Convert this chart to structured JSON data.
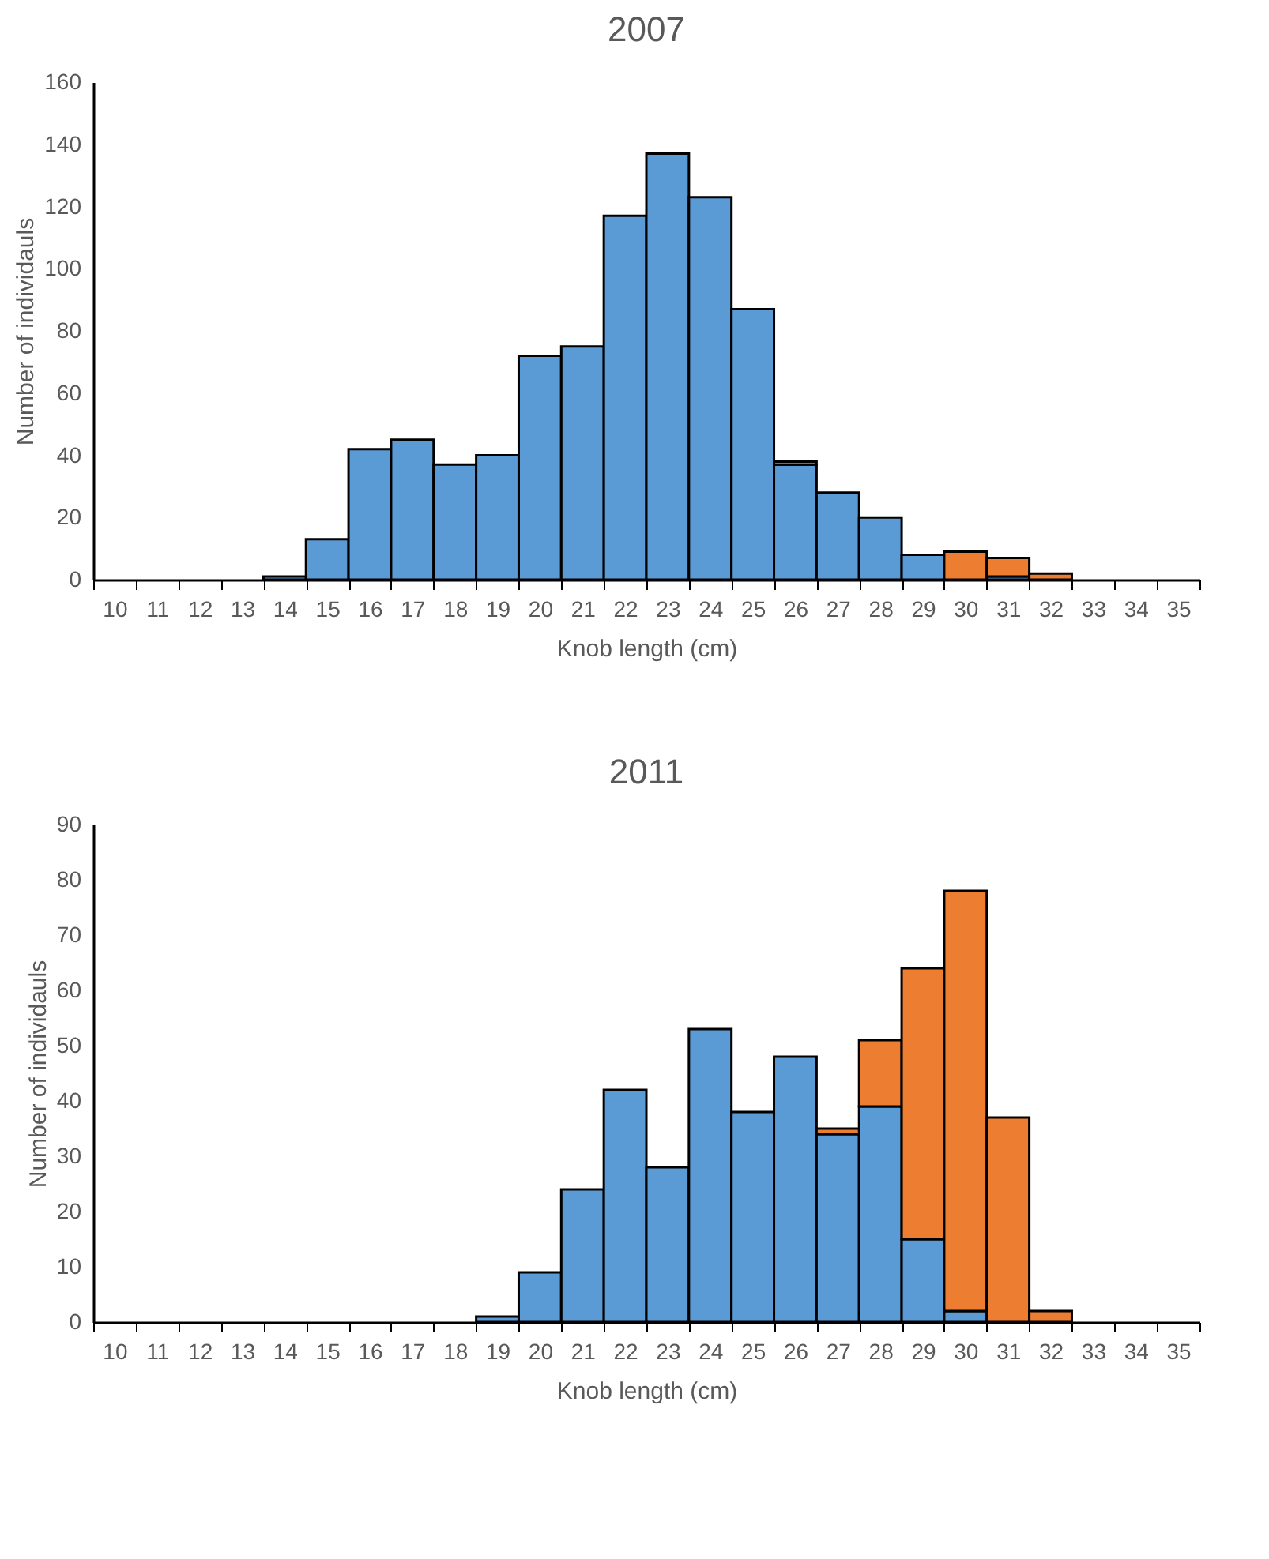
{
  "chart_data": [
    {
      "type": "bar",
      "title": "2007",
      "xlabel": "Knob length (cm)",
      "ylabel": "Number of individauls",
      "stacked": true,
      "legend": false,
      "grid": false,
      "categories": [
        "10",
        "11",
        "12",
        "13",
        "14",
        "15",
        "16",
        "17",
        "18",
        "19",
        "20",
        "21",
        "22",
        "23",
        "24",
        "25",
        "26",
        "27",
        "28",
        "29",
        "30",
        "31",
        "32",
        "33",
        "34",
        "35"
      ],
      "ylim": [
        0,
        160
      ],
      "yticks": [
        0,
        20,
        40,
        60,
        80,
        100,
        120,
        140,
        160
      ],
      "series": [
        {
          "color": "#5b9bd5",
          "values": [
            0,
            0,
            0,
            0,
            1,
            13,
            42,
            45,
            37,
            40,
            72,
            75,
            117,
            137,
            123,
            87,
            37,
            28,
            20,
            8,
            0,
            1,
            0,
            0,
            0,
            0
          ]
        },
        {
          "color": "#ed7d31",
          "values": [
            0,
            0,
            0,
            0,
            0,
            0,
            0,
            0,
            0,
            0,
            0,
            0,
            0,
            0,
            0,
            0,
            1,
            0,
            0,
            0,
            9,
            6,
            2,
            0,
            0,
            0
          ]
        }
      ]
    },
    {
      "type": "bar",
      "title": "2011",
      "xlabel": "Knob length (cm)",
      "ylabel": "Number of individauls",
      "stacked": true,
      "legend": false,
      "grid": false,
      "categories": [
        "10",
        "11",
        "12",
        "13",
        "14",
        "15",
        "16",
        "17",
        "18",
        "19",
        "20",
        "21",
        "22",
        "23",
        "24",
        "25",
        "26",
        "27",
        "28",
        "29",
        "30",
        "31",
        "32",
        "33",
        "34",
        "35"
      ],
      "ylim": [
        0,
        90
      ],
      "yticks": [
        0,
        10,
        20,
        30,
        40,
        50,
        60,
        70,
        80,
        90
      ],
      "series": [
        {
          "color": "#5b9bd5",
          "values": [
            0,
            0,
            0,
            0,
            0,
            0,
            0,
            0,
            0,
            1,
            9,
            24,
            42,
            28,
            53,
            38,
            48,
            34,
            39,
            15,
            2,
            0,
            0,
            0,
            0,
            0
          ]
        },
        {
          "color": "#ed7d31",
          "values": [
            0,
            0,
            0,
            0,
            0,
            0,
            0,
            0,
            0,
            0,
            0,
            0,
            0,
            0,
            0,
            0,
            0,
            1,
            12,
            49,
            76,
            37,
            2,
            0,
            0,
            0
          ]
        }
      ]
    }
  ]
}
